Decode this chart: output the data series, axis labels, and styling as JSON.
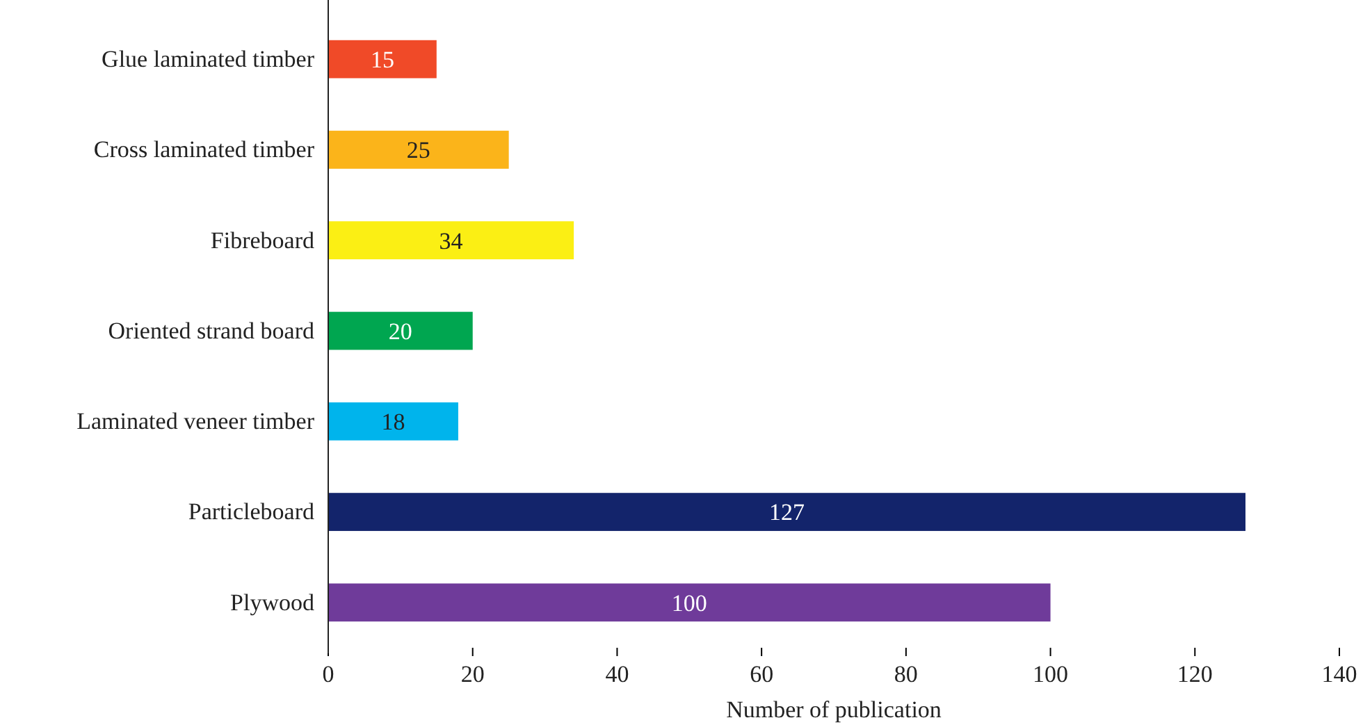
{
  "chart_data": {
    "type": "bar",
    "orientation": "horizontal",
    "xlabel": "Number of publication",
    "categories": [
      "Glue laminated timber",
      "Cross laminated timber",
      "Fibreboard",
      "Oriented strand board",
      "Laminated veneer timber",
      "Particleboard",
      "Plywood"
    ],
    "values": [
      15,
      25,
      34,
      20,
      18,
      127,
      100
    ],
    "colors": [
      "#f04a28",
      "#fbb41a",
      "#fbef14",
      "#00a650",
      "#00b4ec",
      "#13246b",
      "#6f3b9a"
    ],
    "xlim": [
      0,
      140
    ],
    "xticks": [
      0,
      20,
      40,
      60,
      80,
      100,
      120,
      140
    ],
    "data_labels": true
  }
}
